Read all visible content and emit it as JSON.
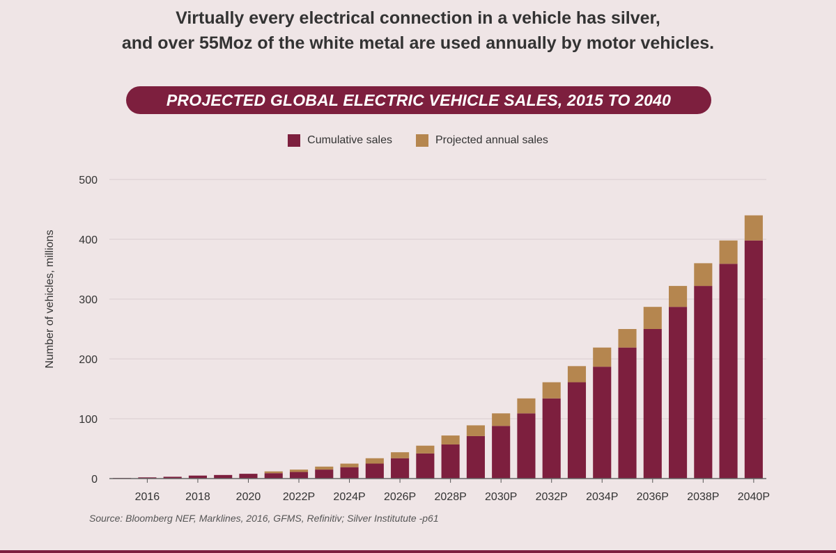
{
  "headline": {
    "line1": "Virtually every electrical connection in a vehicle has silver,",
    "line2": "and over 55Moz of the white metal are used annually by motor vehicles."
  },
  "source": "Source: Bloomberg NEF, Marklines, 2016, GFMS, Refinitiv; Silver Institutute -p61",
  "colors": {
    "cumulative": "#7d1f3e",
    "projected": "#b5864f",
    "banner": "#7d1f3e"
  },
  "chart_data": {
    "type": "bar",
    "stacked": true,
    "title": "PROJECTED GLOBAL ELECTRIC VEHICLE SALES, 2015 TO 2040",
    "xlabel": "",
    "ylabel": "Number of vehicles, millions",
    "ylim": [
      0,
      500
    ],
    "yticks": [
      0,
      100,
      200,
      300,
      400,
      500
    ],
    "grid": true,
    "legend_position": "top-center",
    "categories": [
      "2015",
      "2016",
      "2017",
      "2018",
      "2019",
      "2020",
      "2021",
      "2022P",
      "2023P",
      "2024P",
      "2025P",
      "2026P",
      "2027P",
      "2028P",
      "2029P",
      "2030P",
      "2031P",
      "2032P",
      "2033P",
      "2034P",
      "2035P",
      "2036P",
      "2037P",
      "2038P",
      "2039P",
      "2040P"
    ],
    "tick_labels": [
      "",
      "2016",
      "",
      "2018",
      "",
      "2020",
      "",
      "2022P",
      "",
      "2024P",
      "",
      "2026P",
      "",
      "2028P",
      "",
      "2030P",
      "",
      "2032P",
      "",
      "2034P",
      "",
      "2036P",
      "",
      "2038P",
      "",
      "2040P"
    ],
    "series": [
      {
        "name": "Cumulative sales",
        "values": [
          1,
          2,
          3,
          5,
          6,
          8,
          9,
          11,
          15,
          19,
          25,
          34,
          42,
          57,
          71,
          88,
          109,
          134,
          161,
          187,
          219,
          250,
          287,
          322,
          359,
          398
        ]
      },
      {
        "name": "Projected annual sales",
        "values": [
          0,
          0,
          0,
          0,
          0,
          0,
          3,
          4,
          5,
          6,
          9,
          10,
          13,
          15,
          18,
          21,
          25,
          27,
          27,
          32,
          31,
          37,
          35,
          38,
          39,
          42
        ]
      }
    ]
  }
}
